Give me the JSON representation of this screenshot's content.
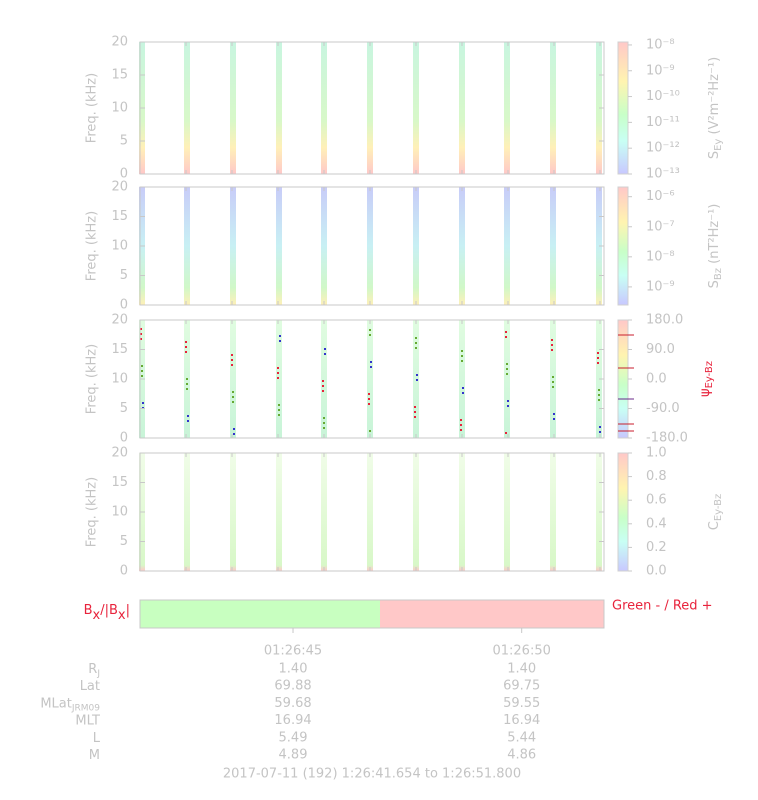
{
  "chart_data": [
    {
      "type": "spectrogram",
      "ylabel": "Freq. (kHz)",
      "ylim": [
        0,
        20
      ],
      "yticks": [
        0,
        5,
        10,
        15,
        20
      ],
      "colorbar": {
        "label": {
          "text": "S",
          "sub": "Ey",
          "rest": " (V²m⁻²Hz⁻¹)"
        },
        "log": true,
        "clim": [
          1e-13,
          1.3e-08
        ],
        "ticks": [
          {
            "value": 1e-08,
            "label": "10⁻⁸"
          },
          {
            "value": 1e-09,
            "label": "10⁻⁹"
          },
          {
            "value": 1e-10,
            "label": "10⁻¹⁰"
          },
          {
            "value": 1e-11,
            "label": "10⁻¹¹"
          },
          {
            "value": 1e-12,
            "label": "10⁻¹²"
          },
          {
            "value": 1e-13,
            "label": "10⁻¹³"
          }
        ]
      }
    },
    {
      "type": "spectrogram",
      "ylabel": "Freq. (kHz)",
      "ylim": [
        0,
        20
      ],
      "yticks": [
        0,
        5,
        10,
        15,
        20
      ],
      "colorbar": {
        "label": {
          "text": "S",
          "sub": "Bz",
          "rest": " (nT²Hz⁻¹)"
        },
        "log": true,
        "clim": [
          2.5e-10,
          2.1e-06
        ],
        "ticks": [
          {
            "value": 1e-06,
            "label": "10⁻⁶"
          },
          {
            "value": 1e-07,
            "label": "10⁻⁷"
          },
          {
            "value": 1e-08,
            "label": "10⁻⁸"
          },
          {
            "value": 1e-09,
            "label": "10⁻⁹"
          }
        ]
      }
    },
    {
      "type": "spectrogram",
      "ylabel": "Freq. (kHz)",
      "ylim": [
        0,
        20
      ],
      "yticks": [
        0,
        5,
        10,
        15,
        20
      ],
      "colorbar": {
        "label": {
          "text": "ψ",
          "sub": "Ey-Bz",
          "rest": ""
        },
        "log": false,
        "clim": [
          -180,
          180
        ],
        "color": "#e8233c",
        "ticks": [
          {
            "value": 180,
            "label": "180.0"
          },
          {
            "value": 90,
            "label": "90.0"
          },
          {
            "value": 0,
            "label": "0.0"
          },
          {
            "value": -90,
            "label": "-90.0"
          },
          {
            "value": -180,
            "label": "-180.0"
          }
        ]
      }
    },
    {
      "type": "spectrogram",
      "ylabel": "Freq. (kHz)",
      "ylim": [
        0,
        20
      ],
      "yticks": [
        0,
        5,
        10,
        15,
        20
      ],
      "colorbar": {
        "label": {
          "text": "C",
          "sub": "Ey-Bz",
          "rest": ""
        },
        "log": false,
        "clim": [
          0,
          1
        ],
        "ticks": [
          {
            "value": 1,
            "label": "1.0"
          },
          {
            "value": 0.8,
            "label": "0.8"
          },
          {
            "value": 0.6,
            "label": "0.6"
          },
          {
            "value": 0.4,
            "label": "0.4"
          },
          {
            "value": 0.2,
            "label": "0.2"
          },
          {
            "value": 0,
            "label": "0.0"
          }
        ]
      }
    }
  ],
  "bx": {
    "label_parts": [
      "B",
      "x",
      "/|B",
      "x",
      "|"
    ],
    "legend": "Green - / Red +"
  },
  "x_axis": {
    "xlim": [
      41.654,
      51.8
    ],
    "xticks": [
      {
        "value": 45,
        "label": "01:26:45"
      },
      {
        "value": 50,
        "label": "01:26:50"
      }
    ]
  },
  "ephemeris": [
    {
      "label": "R",
      "sub": "J",
      "values": [
        "1.40",
        "1.40"
      ]
    },
    {
      "label": "Lat",
      "sub": "",
      "values": [
        "69.88",
        "69.75"
      ]
    },
    {
      "label": "MLat",
      "sub": "JRM09",
      "values": [
        "59.68",
        "59.55"
      ]
    },
    {
      "label": "MLT",
      "sub": "",
      "values": [
        "16.94",
        "16.94"
      ]
    },
    {
      "label": "L",
      "sub": "",
      "values": [
        "5.49",
        "5.44"
      ]
    },
    {
      "label": "M",
      "sub": "",
      "values": [
        "4.89",
        "4.86"
      ]
    }
  ],
  "footer": "2017-07-11 (192) 1:26:41.654 to 1:26:51.800"
}
